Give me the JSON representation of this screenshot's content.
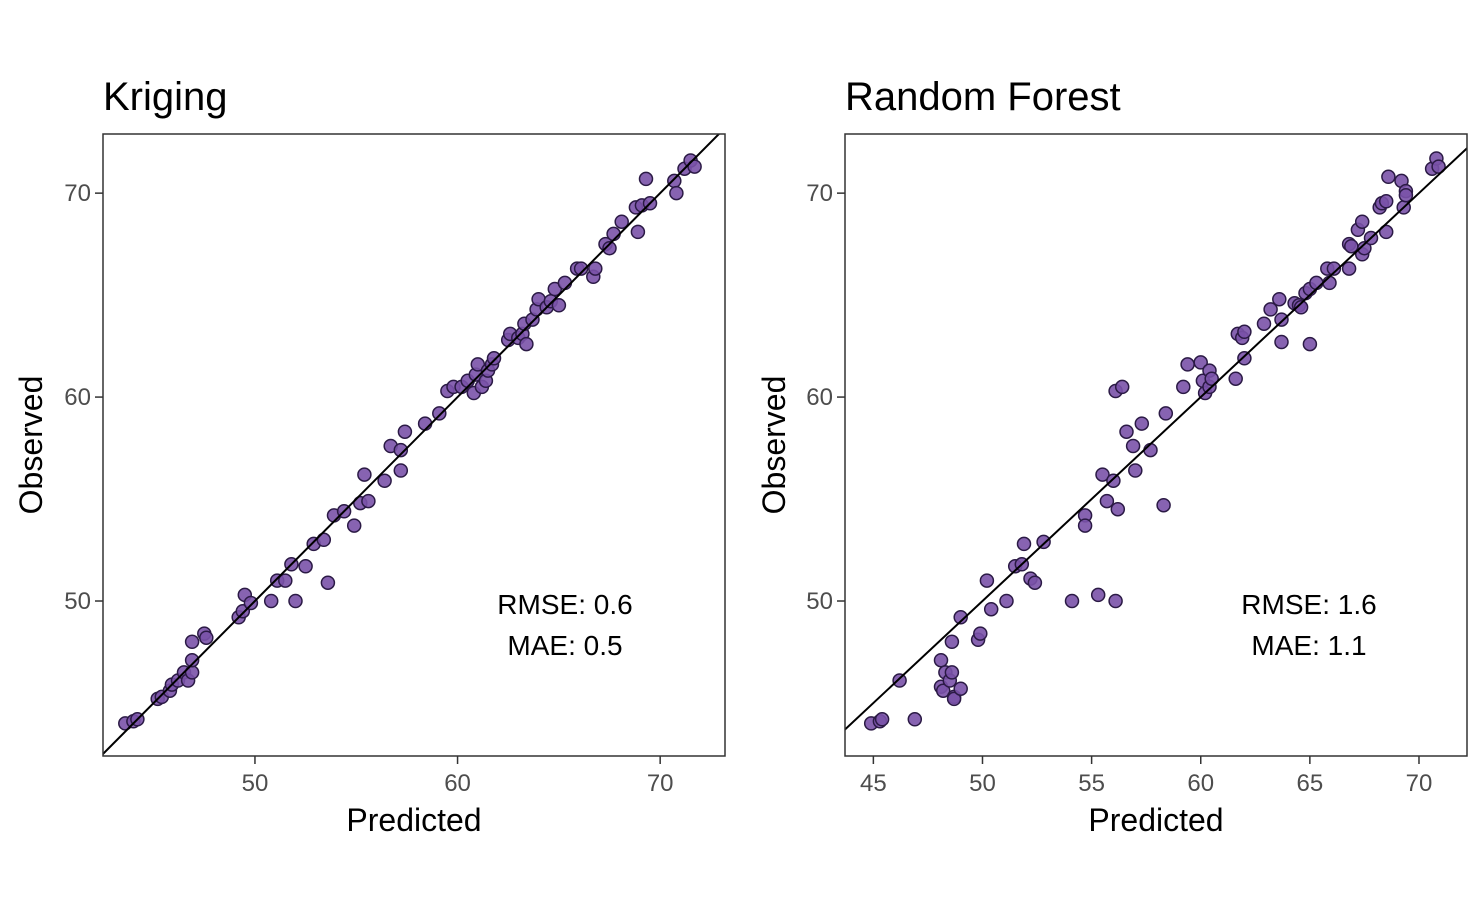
{
  "point_color": "#7a52a8",
  "point_stroke": "#2b1a45",
  "line_color": "#000000",
  "chart_data": [
    {
      "type": "scatter",
      "title": "Kriging",
      "xlabel": "Predicted",
      "ylabel": "Observed",
      "xlim": [
        42.5,
        73.2
      ],
      "ylim": [
        42.4,
        72.9
      ],
      "xticks": [
        50,
        60,
        70
      ],
      "yticks": [
        50,
        60,
        70
      ],
      "grid": false,
      "reference_line": "y = x",
      "annotation": [
        "RMSE: 0.6",
        "MAE: 0.5"
      ],
      "points": [
        [
          43.6,
          44.0
        ],
        [
          44.0,
          44.1
        ],
        [
          44.2,
          44.2
        ],
        [
          45.2,
          45.2
        ],
        [
          45.4,
          45.3
        ],
        [
          45.8,
          45.6
        ],
        [
          45.9,
          45.9
        ],
        [
          46.2,
          46.1
        ],
        [
          46.5,
          46.5
        ],
        [
          46.7,
          46.1
        ],
        [
          46.9,
          46.5
        ],
        [
          46.9,
          47.1
        ],
        [
          46.9,
          48.0
        ],
        [
          47.5,
          48.4
        ],
        [
          47.6,
          48.2
        ],
        [
          49.2,
          49.2
        ],
        [
          49.4,
          49.5
        ],
        [
          49.5,
          50.3
        ],
        [
          49.8,
          49.9
        ],
        [
          50.8,
          50.0
        ],
        [
          51.1,
          51.0
        ],
        [
          51.5,
          51.0
        ],
        [
          51.8,
          51.8
        ],
        [
          52.0,
          50.0
        ],
        [
          52.5,
          51.7
        ],
        [
          52.9,
          52.8
        ],
        [
          53.4,
          53.0
        ],
        [
          53.6,
          50.9
        ],
        [
          53.9,
          54.2
        ],
        [
          54.4,
          54.4
        ],
        [
          54.9,
          53.7
        ],
        [
          55.2,
          54.8
        ],
        [
          55.4,
          56.2
        ],
        [
          55.6,
          54.9
        ],
        [
          56.4,
          55.9
        ],
        [
          56.7,
          57.6
        ],
        [
          57.2,
          57.4
        ],
        [
          57.2,
          56.4
        ],
        [
          57.4,
          58.3
        ],
        [
          58.4,
          58.7
        ],
        [
          59.1,
          59.2
        ],
        [
          59.5,
          60.3
        ],
        [
          59.8,
          60.5
        ],
        [
          60.2,
          60.5
        ],
        [
          60.5,
          60.8
        ],
        [
          60.8,
          60.2
        ],
        [
          60.9,
          61.1
        ],
        [
          61.0,
          61.6
        ],
        [
          61.2,
          60.5
        ],
        [
          61.4,
          60.8
        ],
        [
          61.5,
          61.3
        ],
        [
          61.7,
          61.6
        ],
        [
          61.8,
          61.9
        ],
        [
          62.5,
          62.8
        ],
        [
          62.6,
          63.1
        ],
        [
          63.0,
          62.9
        ],
        [
          63.2,
          63.1
        ],
        [
          63.3,
          63.6
        ],
        [
          63.4,
          62.6
        ],
        [
          63.7,
          63.8
        ],
        [
          63.9,
          64.3
        ],
        [
          64.0,
          64.8
        ],
        [
          64.4,
          64.4
        ],
        [
          64.6,
          64.7
        ],
        [
          64.8,
          65.3
        ],
        [
          65.0,
          64.5
        ],
        [
          65.3,
          65.6
        ],
        [
          65.9,
          66.3
        ],
        [
          66.1,
          66.3
        ],
        [
          66.7,
          65.9
        ],
        [
          66.8,
          66.3
        ],
        [
          67.3,
          67.5
        ],
        [
          67.5,
          67.3
        ],
        [
          67.7,
          68.0
        ],
        [
          68.1,
          68.6
        ],
        [
          68.8,
          69.3
        ],
        [
          68.9,
          68.1
        ],
        [
          69.1,
          69.4
        ],
        [
          69.3,
          70.7
        ],
        [
          69.5,
          69.5
        ],
        [
          70.7,
          70.6
        ],
        [
          70.8,
          70.0
        ],
        [
          71.2,
          71.2
        ],
        [
          71.5,
          71.6
        ],
        [
          71.7,
          71.3
        ]
      ]
    },
    {
      "type": "scatter",
      "title": "Random Forest",
      "xlabel": "Predicted",
      "ylabel": "Observed",
      "xlim": [
        43.7,
        72.2
      ],
      "ylim": [
        42.4,
        72.9
      ],
      "xticks": [
        45,
        50,
        55,
        60,
        65,
        70
      ],
      "yticks": [
        50,
        60,
        70
      ],
      "grid": false,
      "reference_line": "y = x",
      "annotation": [
        "RMSE: 1.6",
        "MAE: 1.1"
      ],
      "points": [
        [
          44.9,
          44.0
        ],
        [
          45.3,
          44.1
        ],
        [
          45.4,
          44.2
        ],
        [
          46.2,
          46.1
        ],
        [
          46.9,
          44.2
        ],
        [
          48.1,
          47.1
        ],
        [
          48.1,
          45.8
        ],
        [
          48.2,
          45.6
        ],
        [
          48.3,
          46.5
        ],
        [
          48.5,
          46.1
        ],
        [
          48.6,
          46.5
        ],
        [
          48.6,
          48.0
        ],
        [
          48.7,
          45.3
        ],
        [
          48.7,
          45.2
        ],
        [
          49.0,
          45.7
        ],
        [
          49.0,
          49.2
        ],
        [
          49.8,
          48.1
        ],
        [
          49.9,
          48.4
        ],
        [
          50.2,
          51.0
        ],
        [
          50.4,
          49.6
        ],
        [
          51.1,
          50.0
        ],
        [
          51.5,
          51.7
        ],
        [
          51.8,
          51.8
        ],
        [
          51.9,
          52.8
        ],
        [
          52.2,
          51.1
        ],
        [
          52.4,
          50.9
        ],
        [
          52.8,
          52.9
        ],
        [
          54.1,
          50.0
        ],
        [
          54.7,
          54.2
        ],
        [
          54.7,
          53.7
        ],
        [
          55.3,
          50.3
        ],
        [
          55.5,
          56.2
        ],
        [
          55.7,
          54.9
        ],
        [
          56.0,
          55.9
        ],
        [
          56.1,
          50.0
        ],
        [
          56.1,
          60.3
        ],
        [
          56.2,
          54.5
        ],
        [
          56.4,
          60.5
        ],
        [
          56.6,
          58.3
        ],
        [
          56.9,
          57.6
        ],
        [
          57.0,
          56.4
        ],
        [
          57.3,
          58.7
        ],
        [
          57.7,
          57.4
        ],
        [
          58.3,
          54.7
        ],
        [
          58.4,
          59.2
        ],
        [
          59.2,
          60.5
        ],
        [
          59.4,
          61.6
        ],
        [
          60.0,
          61.7
        ],
        [
          60.1,
          60.8
        ],
        [
          60.2,
          60.2
        ],
        [
          60.4,
          60.5
        ],
        [
          60.4,
          61.3
        ],
        [
          60.5,
          60.9
        ],
        [
          61.6,
          60.9
        ],
        [
          61.7,
          63.1
        ],
        [
          61.9,
          62.9
        ],
        [
          62.0,
          63.2
        ],
        [
          62.0,
          61.9
        ],
        [
          62.9,
          63.6
        ],
        [
          63.2,
          64.3
        ],
        [
          63.6,
          64.8
        ],
        [
          63.7,
          62.7
        ],
        [
          63.7,
          63.8
        ],
        [
          64.3,
          64.6
        ],
        [
          64.5,
          64.5
        ],
        [
          64.6,
          64.4
        ],
        [
          64.8,
          65.1
        ],
        [
          65.0,
          65.3
        ],
        [
          65.0,
          62.6
        ],
        [
          65.3,
          65.6
        ],
        [
          65.8,
          66.3
        ],
        [
          65.9,
          65.6
        ],
        [
          66.1,
          66.3
        ],
        [
          66.8,
          66.3
        ],
        [
          66.8,
          67.5
        ],
        [
          66.9,
          67.4
        ],
        [
          67.2,
          68.2
        ],
        [
          67.4,
          68.6
        ],
        [
          67.4,
          67.0
        ],
        [
          67.5,
          67.3
        ],
        [
          67.8,
          67.8
        ],
        [
          68.2,
          69.3
        ],
        [
          68.3,
          69.5
        ],
        [
          68.5,
          69.6
        ],
        [
          68.5,
          68.1
        ],
        [
          68.6,
          70.8
        ],
        [
          69.2,
          70.6
        ],
        [
          69.3,
          69.3
        ],
        [
          69.4,
          70.1
        ],
        [
          69.4,
          69.9
        ],
        [
          70.6,
          71.2
        ],
        [
          70.8,
          71.7
        ],
        [
          70.9,
          71.3
        ]
      ]
    }
  ]
}
